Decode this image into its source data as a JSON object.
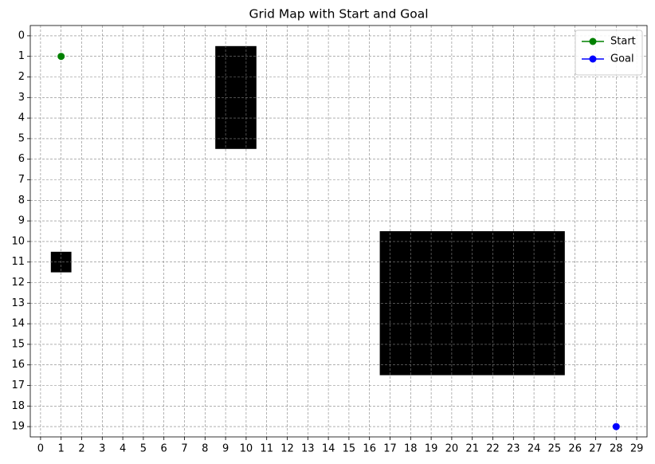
{
  "chart_data": {
    "type": "grid",
    "title": "Grid Map with Start and Goal",
    "xlim": [
      -0.5,
      29.5
    ],
    "ylim": [
      19.5,
      -0.5
    ],
    "xticks": [
      0,
      1,
      2,
      3,
      4,
      5,
      6,
      7,
      8,
      9,
      10,
      11,
      12,
      13,
      14,
      15,
      16,
      17,
      18,
      19,
      20,
      21,
      22,
      23,
      24,
      25,
      26,
      27,
      28,
      29
    ],
    "yticks": [
      0,
      1,
      2,
      3,
      4,
      5,
      6,
      7,
      8,
      9,
      10,
      11,
      12,
      13,
      14,
      15,
      16,
      17,
      18,
      19
    ],
    "grid": true,
    "obstacle_color": "#000000",
    "obstacles": [
      {
        "x": [
          9,
          10
        ],
        "y": [
          1,
          5
        ]
      },
      {
        "x": [
          1,
          1
        ],
        "y": [
          11,
          11
        ]
      },
      {
        "x": [
          17,
          25
        ],
        "y": [
          10,
          16
        ]
      }
    ],
    "series": [
      {
        "name": "Start",
        "color": "green",
        "x": [
          1
        ],
        "values": [
          1
        ]
      },
      {
        "name": "Goal",
        "color": "blue",
        "x": [
          28
        ],
        "values": [
          19
        ]
      }
    ],
    "legend": "upper right"
  }
}
